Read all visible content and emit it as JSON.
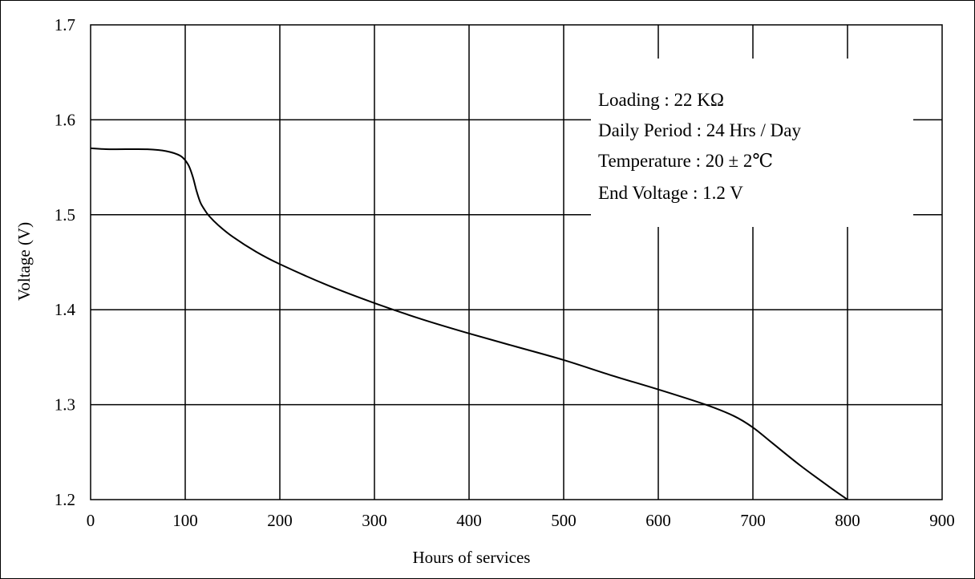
{
  "chart_data": {
    "type": "line",
    "xlabel": "Hours of services",
    "ylabel": "Voltage (V)",
    "xlim": [
      0,
      900
    ],
    "ylim": [
      1.2,
      1.7
    ],
    "grid": true,
    "xticks": [
      {
        "value": 0,
        "label": "0"
      },
      {
        "value": 100,
        "label": "100"
      },
      {
        "value": 200,
        "label": "200"
      },
      {
        "value": 300,
        "label": "300"
      },
      {
        "value": 400,
        "label": "400"
      },
      {
        "value": 500,
        "label": "500"
      },
      {
        "value": 600,
        "label": "600"
      },
      {
        "value": 700,
        "label": "700"
      },
      {
        "value": 800,
        "label": "800"
      },
      {
        "value": 900,
        "label": "900"
      }
    ],
    "yticks": [
      {
        "value": 1.2,
        "label": "1.2"
      },
      {
        "value": 1.3,
        "label": "1.3"
      },
      {
        "value": 1.4,
        "label": "1.4"
      },
      {
        "value": 1.5,
        "label": "1.5"
      },
      {
        "value": 1.6,
        "label": "1.6"
      },
      {
        "value": 1.7,
        "label": "1.7"
      }
    ],
    "annotations": {
      "loading": "Loading : 22 KΩ",
      "daily_period": "Daily Period : 24 Hrs / Day",
      "temperature": "Temperature : 20 ± 2℃",
      "end_voltage": "End Voltage :  1.2 V"
    },
    "series": [
      {
        "color": "#000000",
        "x": [
          0,
          20,
          60,
          80,
          95,
          103,
          108,
          112,
          116,
          120,
          125,
          135,
          150,
          175,
          200,
          250,
          300,
          350,
          400,
          450,
          500,
          550,
          600,
          650,
          680,
          700,
          720,
          750,
          780,
          800
        ],
        "y": [
          1.57,
          1.569,
          1.569,
          1.567,
          1.562,
          1.553,
          1.54,
          1.525,
          1.513,
          1.506,
          1.499,
          1.489,
          1.477,
          1.461,
          1.448,
          1.426,
          1.407,
          1.39,
          1.375,
          1.361,
          1.347,
          1.331,
          1.316,
          1.3,
          1.288,
          1.276,
          1.26,
          1.236,
          1.214,
          1.2
        ]
      }
    ]
  }
}
